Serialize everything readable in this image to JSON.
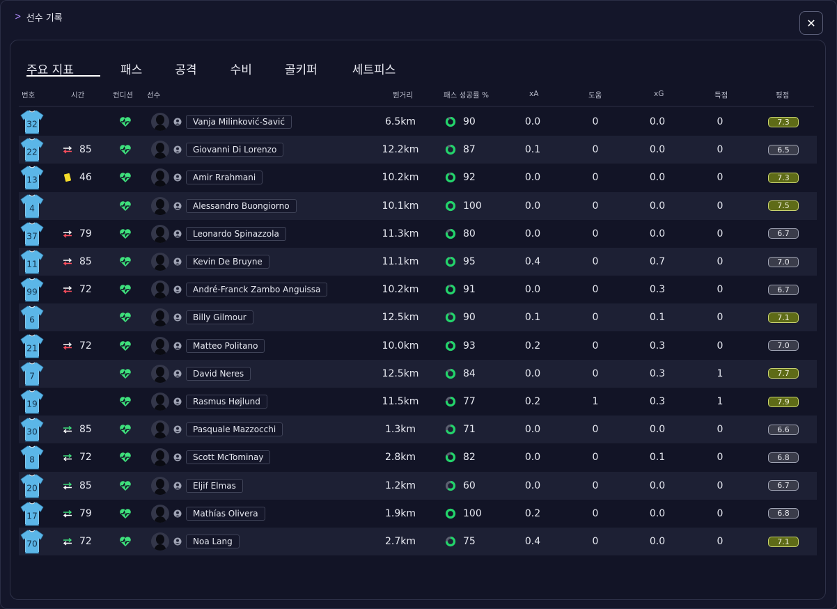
{
  "window": {
    "title": "선수 기록",
    "close_label": "✕"
  },
  "tabs": [
    "주요 지표",
    "패스",
    "공격",
    "수비",
    "골키퍼",
    "세트피스"
  ],
  "active_tab": 0,
  "columns": {
    "number": "번호",
    "time": "시간",
    "condition": "컨디션",
    "player": "선수",
    "distance": "뛴거리",
    "pass_pct": "패스 성공률 %",
    "xa": "xA",
    "assists": "도움",
    "xg": "xG",
    "goals": "득점",
    "rating": "평점"
  },
  "colors": {
    "jersey": "#5bb6e8",
    "sub_out": "#ff4f5e",
    "sub_in": "#3ee07c",
    "yellow_card": "#f5dc2a",
    "condition": "#3ee07c",
    "rating_good": "#5e6b17"
  },
  "players": [
    {
      "number": "32",
      "event": "",
      "time": "",
      "name": "Vanja Milinković-Savić",
      "distance": "6.5km",
      "pass_pct": "90",
      "xa": "0.0",
      "assists": "0",
      "xg": "0.0",
      "goals": "0",
      "rating": "7.3",
      "rating_tier": "good"
    },
    {
      "number": "22",
      "event": "sub-out",
      "time": "85",
      "name": "Giovanni Di Lorenzo",
      "distance": "12.2km",
      "pass_pct": "87",
      "xa": "0.1",
      "assists": "0",
      "xg": "0.0",
      "goals": "0",
      "rating": "6.5",
      "rating_tier": "avg"
    },
    {
      "number": "13",
      "event": "yellow-card",
      "time": "46",
      "name": "Amir Rrahmani",
      "distance": "10.2km",
      "pass_pct": "92",
      "xa": "0.0",
      "assists": "0",
      "xg": "0.0",
      "goals": "0",
      "rating": "7.3",
      "rating_tier": "good"
    },
    {
      "number": "4",
      "event": "",
      "time": "",
      "name": "Alessandro Buongiorno",
      "distance": "10.1km",
      "pass_pct": "100",
      "xa": "0.0",
      "assists": "0",
      "xg": "0.0",
      "goals": "0",
      "rating": "7.5",
      "rating_tier": "good"
    },
    {
      "number": "37",
      "event": "sub-out",
      "time": "79",
      "name": "Leonardo Spinazzola",
      "distance": "11.3km",
      "pass_pct": "80",
      "xa": "0.0",
      "assists": "0",
      "xg": "0.0",
      "goals": "0",
      "rating": "6.7",
      "rating_tier": "avg"
    },
    {
      "number": "11",
      "event": "sub-out",
      "time": "85",
      "name": "Kevin De Bruyne",
      "distance": "11.1km",
      "pass_pct": "95",
      "xa": "0.4",
      "assists": "0",
      "xg": "0.7",
      "goals": "0",
      "rating": "7.0",
      "rating_tier": "avg"
    },
    {
      "number": "99",
      "event": "sub-out",
      "time": "72",
      "name": "André-Franck Zambo Anguissa",
      "distance": "10.2km",
      "pass_pct": "91",
      "xa": "0.0",
      "assists": "0",
      "xg": "0.3",
      "goals": "0",
      "rating": "6.7",
      "rating_tier": "avg"
    },
    {
      "number": "6",
      "event": "",
      "time": "",
      "name": "Billy Gilmour",
      "distance": "12.5km",
      "pass_pct": "90",
      "xa": "0.1",
      "assists": "0",
      "xg": "0.1",
      "goals": "0",
      "rating": "7.1",
      "rating_tier": "good"
    },
    {
      "number": "21",
      "event": "sub-out",
      "time": "72",
      "name": "Matteo Politano",
      "distance": "10.0km",
      "pass_pct": "93",
      "xa": "0.2",
      "assists": "0",
      "xg": "0.3",
      "goals": "0",
      "rating": "7.0",
      "rating_tier": "avg"
    },
    {
      "number": "7",
      "event": "",
      "time": "",
      "name": "David Neres",
      "distance": "12.5km",
      "pass_pct": "84",
      "xa": "0.0",
      "assists": "0",
      "xg": "0.3",
      "goals": "1",
      "rating": "7.7",
      "rating_tier": "good"
    },
    {
      "number": "19",
      "event": "",
      "time": "",
      "name": "Rasmus Højlund",
      "distance": "11.5km",
      "pass_pct": "77",
      "xa": "0.2",
      "assists": "1",
      "xg": "0.3",
      "goals": "1",
      "rating": "7.9",
      "rating_tier": "good"
    },
    {
      "number": "30",
      "event": "sub-in",
      "time": "85",
      "name": "Pasquale Mazzocchi",
      "distance": "1.3km",
      "pass_pct": "71",
      "xa": "0.0",
      "assists": "0",
      "xg": "0.0",
      "goals": "0",
      "rating": "6.6",
      "rating_tier": "avg"
    },
    {
      "number": "8",
      "event": "sub-in",
      "time": "72",
      "name": "Scott McTominay",
      "distance": "2.8km",
      "pass_pct": "82",
      "xa": "0.0",
      "assists": "0",
      "xg": "0.1",
      "goals": "0",
      "rating": "6.8",
      "rating_tier": "avg"
    },
    {
      "number": "20",
      "event": "sub-in",
      "time": "85",
      "name": "Eljif Elmas",
      "distance": "1.2km",
      "pass_pct": "60",
      "xa": "0.0",
      "assists": "0",
      "xg": "0.0",
      "goals": "0",
      "rating": "6.7",
      "rating_tier": "avg"
    },
    {
      "number": "17",
      "event": "sub-in",
      "time": "79",
      "name": "Mathías Olivera",
      "distance": "1.9km",
      "pass_pct": "100",
      "xa": "0.2",
      "assists": "0",
      "xg": "0.0",
      "goals": "0",
      "rating": "6.8",
      "rating_tier": "avg"
    },
    {
      "number": "70",
      "event": "sub-in",
      "time": "72",
      "name": "Noa Lang",
      "distance": "2.7km",
      "pass_pct": "75",
      "xa": "0.4",
      "assists": "0",
      "xg": "0.0",
      "goals": "0",
      "rating": "7.1",
      "rating_tier": "good"
    }
  ]
}
